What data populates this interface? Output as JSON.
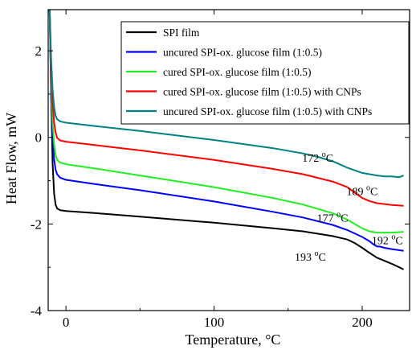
{
  "chart_data": {
    "type": "line",
    "xlabel": "Temperature, °C",
    "ylabel": "Heat Flow, mW",
    "xlim": [
      -12,
      232
    ],
    "ylim": [
      -4,
      2.95
    ],
    "x_ticks": [
      0,
      100,
      200
    ],
    "y_ticks": [
      -4,
      -2,
      0,
      2
    ],
    "grid": false,
    "legend_position": "top-right",
    "series": [
      {
        "name": "SPI film",
        "color": "#000000",
        "x": [
          -11,
          -10,
          -9,
          -8,
          -7,
          -6,
          -4,
          0,
          20,
          50,
          100,
          140,
          160,
          180,
          190,
          195,
          200,
          205,
          210,
          215,
          220,
          225,
          228
        ],
        "y": [
          3.0,
          1.0,
          -0.6,
          -1.3,
          -1.55,
          -1.64,
          -1.68,
          -1.7,
          -1.75,
          -1.83,
          -1.97,
          -2.1,
          -2.17,
          -2.28,
          -2.36,
          -2.44,
          -2.55,
          -2.67,
          -2.78,
          -2.85,
          -2.92,
          -3.0,
          -3.05
        ]
      },
      {
        "name": "uncured SPI-ox. glucose film (1:0.5)",
        "color": "#0000ff",
        "x": [
          -11,
          -10,
          -9,
          -8,
          -7,
          -6,
          -4,
          0,
          20,
          50,
          100,
          140,
          160,
          180,
          190,
          200,
          205,
          208,
          210,
          212,
          215,
          220,
          228
        ],
        "y": [
          3.0,
          0.9,
          0.0,
          -0.5,
          -0.75,
          -0.85,
          -0.93,
          -0.98,
          -1.08,
          -1.22,
          -1.48,
          -1.72,
          -1.85,
          -2.02,
          -2.14,
          -2.3,
          -2.4,
          -2.48,
          -2.52,
          -2.52,
          -2.55,
          -2.58,
          -2.62
        ]
      },
      {
        "name": "cured SPI-ox. glucose film (1:0.5)",
        "color": "#22ee22",
        "x": [
          -11,
          -10,
          -9,
          -8,
          -7,
          -6,
          -4,
          0,
          20,
          50,
          100,
          140,
          160,
          180,
          190,
          195,
          200,
          205,
          210,
          220,
          228
        ],
        "y": [
          3.0,
          1.3,
          0.4,
          -0.15,
          -0.4,
          -0.52,
          -0.58,
          -0.62,
          -0.72,
          -0.88,
          -1.15,
          -1.4,
          -1.55,
          -1.75,
          -1.9,
          -2.0,
          -2.1,
          -2.17,
          -2.2,
          -2.2,
          -2.18
        ]
      },
      {
        "name": "cured SPI-ox. glucose film (1:0.5) with CNPs",
        "color": "#ff0000",
        "x": [
          -11,
          -10,
          -9,
          -8,
          -7,
          -6,
          -4,
          0,
          20,
          50,
          100,
          140,
          160,
          180,
          190,
          195,
          200,
          205,
          210,
          220,
          228
        ],
        "y": [
          3.0,
          1.5,
          0.8,
          0.35,
          0.12,
          -0.01,
          -0.07,
          -0.1,
          -0.18,
          -0.3,
          -0.52,
          -0.73,
          -0.85,
          -1.02,
          -1.15,
          -1.28,
          -1.4,
          -1.47,
          -1.52,
          -1.56,
          -1.58
        ]
      },
      {
        "name": "uncured SPI-ox. glucose film (1:0.5) with CNPs",
        "color": "#008080",
        "x": [
          -11,
          -10,
          -9,
          -8,
          -7,
          -6,
          -4,
          0,
          20,
          50,
          100,
          140,
          160,
          170,
          180,
          190,
          200,
          210,
          215,
          220,
          225,
          228
        ],
        "y": [
          3.0,
          1.8,
          1.1,
          0.7,
          0.5,
          0.42,
          0.37,
          0.34,
          0.26,
          0.15,
          -0.06,
          -0.25,
          -0.37,
          -0.45,
          -0.55,
          -0.7,
          -0.82,
          -0.88,
          -0.9,
          -0.9,
          -0.92,
          -0.88
        ]
      }
    ],
    "annotations": [
      {
        "value": "172",
        "unit": "°C",
        "x": 170,
        "y": -0.56
      },
      {
        "value": "189",
        "unit": "°C",
        "x": 200,
        "y": -1.33
      },
      {
        "value": "177",
        "unit": "°C",
        "x": 180,
        "y": -1.95
      },
      {
        "value": "192",
        "unit": "°C",
        "x": 217,
        "y": -2.47
      },
      {
        "value": "193",
        "unit": "°C",
        "x": 165,
        "y": -2.85
      }
    ]
  }
}
